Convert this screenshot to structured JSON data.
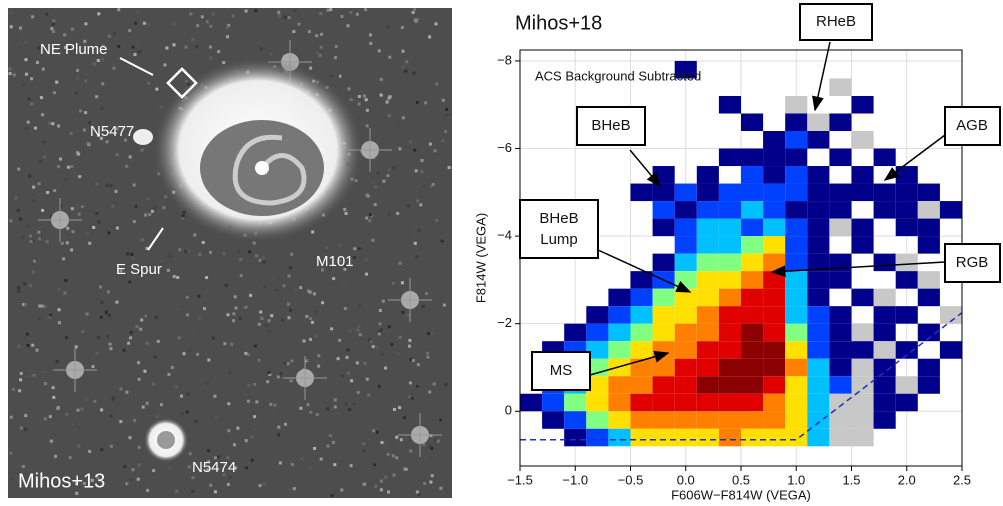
{
  "image": {
    "labels": [
      "NE Plume",
      "N5477",
      "E Spur",
      "M101",
      "N5474",
      "Mihos+13"
    ]
  },
  "chart_data": {
    "type": "heatmap",
    "title": "Mihos+18",
    "subtitle": "ACS Background Subtracted",
    "xlabel": "F606W−F814W (VEGA)",
    "ylabel": "F814W (VEGA)",
    "annotations": [
      "RHeB",
      "BHeB",
      "AGB",
      "BHeB",
      "Lump",
      "RGB",
      "MS"
    ],
    "xlim": [
      -1.5,
      2.5
    ],
    "ylim": [
      1.25,
      -8.25
    ],
    "xticks": [
      {
        "value": -1.5,
        "label": "−1.5"
      },
      {
        "value": -1,
        "label": "−1.0"
      },
      {
        "value": -0.5,
        "label": "−0.5"
      },
      {
        "value": 0,
        "label": "0.0"
      },
      0.5,
      {
        "value": 1,
        "label": "1.0"
      },
      1.5,
      {
        "value": 2,
        "label": "2.0"
      },
      2.5
    ],
    "yticks": [
      {
        "value": -8,
        "label": "−8"
      },
      {
        "value": -6,
        "label": "−6"
      },
      {
        "value": -4,
        "label": "−4"
      },
      {
        "value": -2,
        "label": "−2"
      },
      0
    ],
    "grid": true,
    "colormap": [
      "#c8c8c8",
      "#00008b",
      "#0040ff",
      "#00c0ff",
      "#80ff80",
      "#ffe000",
      "#ff8000",
      "#e00000",
      "#8b0000"
    ],
    "x_edges": [
      -1.5,
      -1.3,
      -1.1,
      -0.9,
      -0.7,
      -0.5,
      -0.3,
      -0.1,
      0.1,
      0.3,
      0.5,
      0.7,
      0.9,
      1.1,
      1.3,
      1.5,
      1.7,
      1.9,
      2.1,
      2.3,
      2.5
    ],
    "y_edges": [
      -8,
      -7.6,
      -7.2,
      -6.8,
      -6.4,
      -6,
      -5.6,
      -5.2,
      -4.8,
      -4.4,
      -4,
      -3.6,
      -3.2,
      -2.8,
      -2.4,
      -2,
      -1.6,
      -1.2,
      -0.8,
      -0.4,
      0,
      0.4,
      0.8
    ],
    "z": [
      [
        0,
        0,
        0,
        0,
        0,
        0,
        0,
        2,
        0,
        0,
        0,
        0,
        0,
        0,
        0,
        0,
        0,
        0,
        0,
        0
      ],
      [
        0,
        0,
        0,
        0,
        0,
        0,
        0,
        0,
        0,
        0,
        0,
        0,
        0,
        0,
        1,
        0,
        0,
        0,
        0,
        0
      ],
      [
        0,
        0,
        0,
        0,
        0,
        0,
        0,
        0,
        0,
        2,
        0,
        0,
        1,
        0,
        0,
        2,
        0,
        0,
        0,
        0
      ],
      [
        0,
        0,
        0,
        0,
        0,
        0,
        0,
        0,
        0,
        0,
        2,
        0,
        2,
        1,
        2,
        0,
        0,
        0,
        0,
        0
      ],
      [
        0,
        0,
        0,
        0,
        0,
        0,
        0,
        0,
        0,
        0,
        0,
        2,
        3,
        2,
        0,
        1,
        0,
        0,
        0,
        0
      ],
      [
        0,
        0,
        0,
        0,
        0,
        0,
        0,
        0,
        0,
        2,
        2,
        2,
        2,
        0,
        2,
        0,
        2,
        0,
        0,
        0
      ],
      [
        0,
        0,
        0,
        0,
        0,
        0,
        2,
        0,
        2,
        0,
        3,
        2,
        3,
        2,
        0,
        2,
        0,
        2,
        0,
        0
      ],
      [
        0,
        0,
        0,
        0,
        0,
        2,
        2,
        3,
        2,
        3,
        3,
        3,
        3,
        2,
        2,
        2,
        2,
        2,
        2,
        0
      ],
      [
        0,
        0,
        0,
        0,
        0,
        0,
        3,
        2,
        3,
        3,
        4,
        3,
        2,
        2,
        2,
        0,
        2,
        2,
        1,
        2
      ],
      [
        0,
        0,
        0,
        0,
        0,
        0,
        2,
        3,
        4,
        4,
        3,
        4,
        3,
        2,
        1,
        2,
        0,
        2,
        2,
        0
      ],
      [
        0,
        0,
        0,
        0,
        0,
        0,
        0,
        3,
        4,
        4,
        5,
        6,
        3,
        2,
        0,
        2,
        0,
        0,
        2,
        0
      ],
      [
        0,
        0,
        0,
        0,
        0,
        0,
        2,
        4,
        5,
        5,
        6,
        7,
        3,
        2,
        2,
        0,
        2,
        1,
        0,
        0
      ],
      [
        0,
        0,
        0,
        0,
        0,
        2,
        3,
        5,
        6,
        6,
        7,
        8,
        4,
        2,
        2,
        0,
        0,
        2,
        1,
        0
      ],
      [
        0,
        0,
        0,
        0,
        2,
        3,
        5,
        6,
        6,
        7,
        8,
        8,
        4,
        2,
        0,
        2,
        1,
        0,
        2,
        0
      ],
      [
        0,
        0,
        0,
        2,
        3,
        4,
        6,
        6,
        7,
        8,
        8,
        8,
        4,
        3,
        2,
        0,
        2,
        2,
        0,
        1
      ],
      [
        0,
        0,
        2,
        3,
        4,
        5,
        6,
        7,
        7,
        8,
        9,
        8,
        5,
        3,
        2,
        1,
        2,
        0,
        2,
        0
      ],
      [
        0,
        2,
        3,
        4,
        5,
        6,
        7,
        7,
        8,
        8,
        9,
        9,
        6,
        3,
        2,
        2,
        1,
        2,
        0,
        2
      ],
      [
        0,
        3,
        4,
        5,
        6,
        7,
        7,
        8,
        8,
        9,
        9,
        9,
        7,
        4,
        2,
        1,
        2,
        0,
        2,
        0
      ],
      [
        0,
        3,
        4,
        6,
        7,
        7,
        8,
        8,
        9,
        9,
        9,
        8,
        6,
        4,
        3,
        1,
        2,
        1,
        2,
        0
      ],
      [
        2,
        3,
        5,
        6,
        7,
        8,
        8,
        8,
        8,
        8,
        8,
        7,
        6,
        4,
        1,
        1,
        2,
        2,
        0,
        0
      ],
      [
        0,
        2,
        3,
        5,
        6,
        7,
        7,
        7,
        7,
        7,
        7,
        7,
        6,
        4,
        1,
        1,
        2,
        0,
        0,
        0
      ],
      [
        0,
        0,
        2,
        3,
        4,
        6,
        6,
        6,
        6,
        7,
        6,
        6,
        6,
        4,
        1,
        1,
        0,
        0,
        0,
        0
      ]
    ],
    "lines": [
      {
        "x": [
          -1.5,
          1,
          2.5
        ],
        "y": [
          0.65,
          0.65,
          -2.25
        ],
        "color": "#2030c0",
        "dash": true
      }
    ]
  }
}
